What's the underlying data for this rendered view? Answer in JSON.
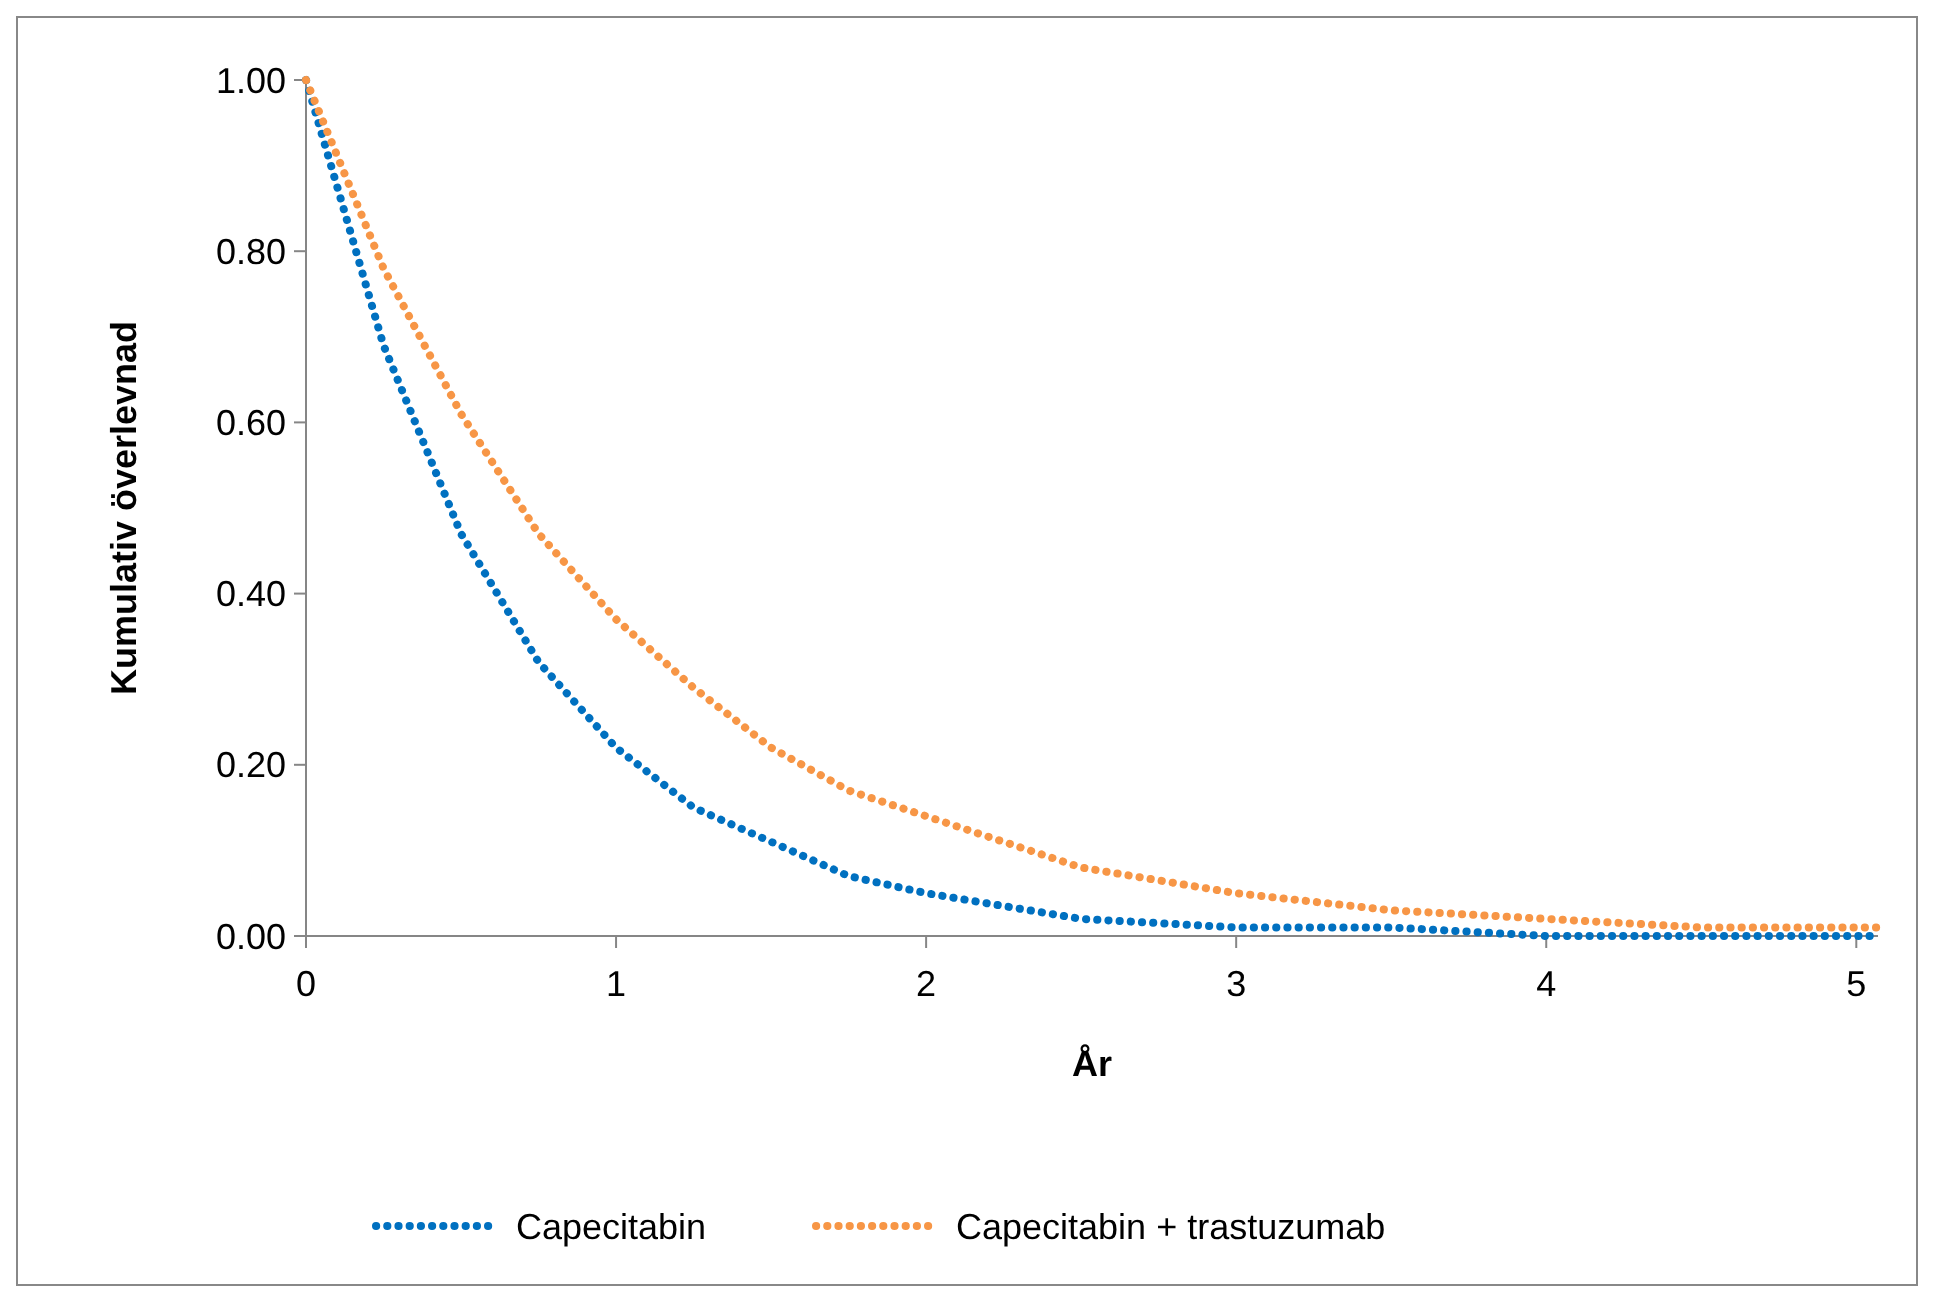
{
  "chart_data": {
    "type": "line",
    "xlabel": "År",
    "ylabel": "Kumulativ överlevnad",
    "xlim": [
      0,
      5.07
    ],
    "ylim": [
      0,
      1
    ],
    "xticks": [
      0,
      1,
      2,
      3,
      4,
      5
    ],
    "yticks": [
      {
        "value": 0,
        "label": "0.00"
      },
      {
        "value": 0.2,
        "label": "0.20"
      },
      {
        "value": 0.4,
        "label": "0.40"
      },
      {
        "value": 0.6,
        "label": "0.60"
      },
      {
        "value": 0.8,
        "label": "0.80"
      },
      {
        "value": 1,
        "label": "1.00"
      }
    ],
    "grid": false,
    "legend": "bottom",
    "line_style": "dotted",
    "marker": "none",
    "x": [
      0,
      0.25,
      0.5,
      0.75,
      1,
      1.25,
      1.5,
      1.75,
      2,
      2.5,
      3,
      3.5,
      4,
      4.5,
      5,
      5.07
    ],
    "series": [
      {
        "name": "Capecitabin",
        "color": "#0070c0",
        "values": [
          1,
          0.69,
          0.47,
          0.32,
          0.22,
          0.15,
          0.11,
          0.07,
          0.05,
          0.02,
          0.01,
          0.01,
          0,
          0,
          0,
          0
        ]
      },
      {
        "name": "Capecitabin + trastuzumab",
        "color": "#f79646",
        "values": [
          1,
          0.78,
          0.61,
          0.47,
          0.37,
          0.29,
          0.22,
          0.17,
          0.14,
          0.08,
          0.05,
          0.03,
          0.02,
          0.01,
          0.01,
          0.01
        ]
      }
    ]
  }
}
